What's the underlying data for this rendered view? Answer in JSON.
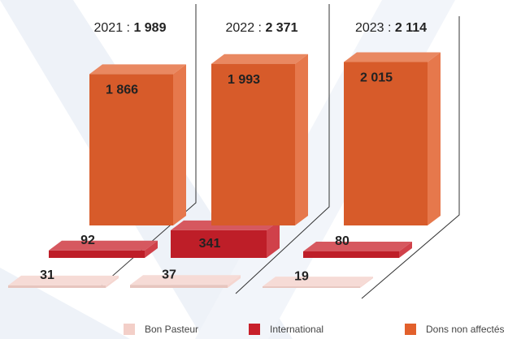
{
  "chart_data": {
    "type": "bar3d",
    "categories": [
      "2021",
      "2022",
      "2023"
    ],
    "total_separator": " : ",
    "totals": [
      1989,
      2371,
      2114
    ],
    "total_labels": [
      "1 989",
      "2 371",
      "2 114"
    ],
    "series": [
      {
        "name": "Bon Pasteur",
        "color": "#f3cfc8",
        "values": [
          31,
          37,
          19
        ]
      },
      {
        "name": "International",
        "color": "#c8202a",
        "values": [
          92,
          341,
          80
        ]
      },
      {
        "name": "Dons non affectés",
        "color": "#e2602c",
        "values": [
          1866,
          1993,
          2015
        ],
        "value_labels": [
          "1 866",
          "1 993",
          "2 015"
        ]
      }
    ]
  }
}
